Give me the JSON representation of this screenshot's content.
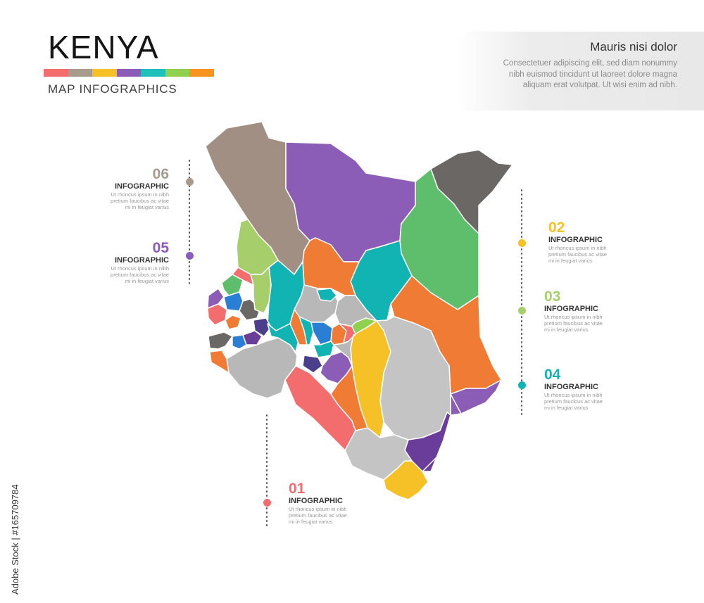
{
  "header": {
    "title": "KENYA",
    "subtitle": "MAP INFOGRAPHICS",
    "color_stripes": [
      "#f36d6f",
      "#a89a8d",
      "#f6c126",
      "#8b5db8",
      "#1ec0bb",
      "#8fd14f",
      "#f7941d"
    ]
  },
  "info_box": {
    "title": "Mauris nisi dolor",
    "text": "Consectetuer adipiscing elit, sed diam nonummy nibh euismod tincidunt ut laoreet dolore magna aliquam erat volutpat. Ut wisi enim ad nibh."
  },
  "callouts": [
    {
      "number": "01",
      "label": "INFOGRAPHIC",
      "text": "Ut rhoncus ipsum in nibh pretium faucibus ac vitae mi in feugiat varius",
      "color": "#f36d6f"
    },
    {
      "number": "02",
      "label": "INFOGRAPHIC",
      "text": "Ut rhoncus ipsum in nibh pretium faucibus ac vitae mi in feugiat varius",
      "color": "#f6c126"
    },
    {
      "number": "03",
      "label": "INFOGRAPHIC",
      "text": "Ut rhoncus ipsum in nibh pretium faucibus ac vitae mi in feugiat varius",
      "color": "#a6cf6b"
    },
    {
      "number": "04",
      "label": "INFOGRAPHIC",
      "text": "Ut rhoncus ipsum in nibh pretium faucibus ac vitae mi in feugiat varius",
      "color": "#12b3b3"
    },
    {
      "number": "05",
      "label": "INFOGRAPHIC",
      "text": "Ut rhoncus ipsum in nibh pretium faucibus ac vitae mi in feugiat varius",
      "color": "#8b5db8"
    },
    {
      "number": "06",
      "label": "INFOGRAPHIC",
      "text": "Ut rhoncus ipsum in nibh pretium faucibus ac vitae mi in feugiat varius",
      "color": "#a89a8d"
    }
  ],
  "watermark": "Adobe Stock | #165709784"
}
